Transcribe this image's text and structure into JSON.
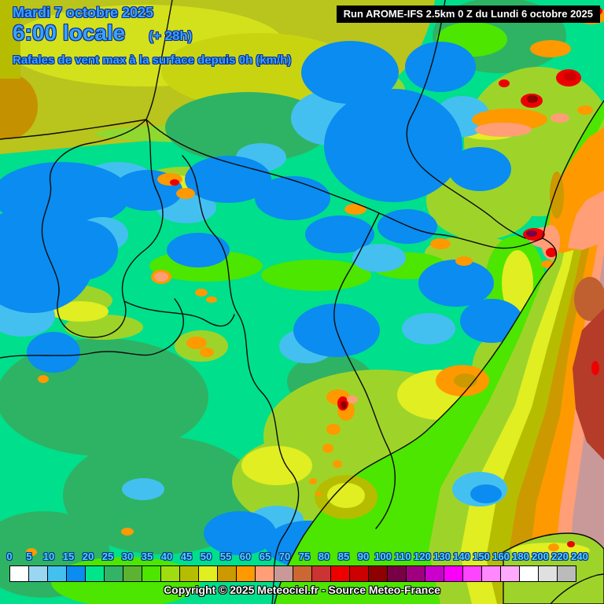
{
  "header": {
    "date": "Mardi 7 octobre 2025",
    "time": "6:00 locale",
    "offset": "(+ 28h)",
    "subtitle": "Rafales de vent max à la surface depuis 0h (km/h)"
  },
  "run_info": {
    "label": "Run AROME-IFS 2.5km 0 Z du Lundi 6 octobre 2025"
  },
  "legend": {
    "unit": "km/h",
    "stops": [
      {
        "value": "0",
        "color": "#ffffff"
      },
      {
        "value": "5",
        "color": "#99d6f2"
      },
      {
        "value": "10",
        "color": "#44c0f0"
      },
      {
        "value": "15",
        "color": "#0a8cf0"
      },
      {
        "value": "20",
        "color": "#00e589"
      },
      {
        "value": "25",
        "color": "#33b366"
      },
      {
        "value": "30",
        "color": "#5cb332"
      },
      {
        "value": "35",
        "color": "#4ce600"
      },
      {
        "value": "40",
        "color": "#9fdd11"
      },
      {
        "value": "45",
        "color": "#b6bd00"
      },
      {
        "value": "50",
        "color": "#e0ee22"
      },
      {
        "value": "55",
        "color": "#cc9900"
      },
      {
        "value": "60",
        "color": "#ff9900"
      },
      {
        "value": "65",
        "color": "#ff9e77"
      },
      {
        "value": "70",
        "color": "#c99999"
      },
      {
        "value": "75",
        "color": "#cc6633"
      },
      {
        "value": "80",
        "color": "#cc3333"
      },
      {
        "value": "85",
        "color": "#ee0000"
      },
      {
        "value": "90",
        "color": "#cc0000"
      },
      {
        "value": "100",
        "color": "#8f0000"
      },
      {
        "value": "110",
        "color": "#7a0045"
      },
      {
        "value": "120",
        "color": "#a00080"
      },
      {
        "value": "130",
        "color": "#cc00cc"
      },
      {
        "value": "140",
        "color": "#fa00fa"
      },
      {
        "value": "150",
        "color": "#ff44ff"
      },
      {
        "value": "160",
        "color": "#ff88ff"
      },
      {
        "value": "180",
        "color": "#ffaaff"
      },
      {
        "value": "200",
        "color": "#ffffff"
      },
      {
        "value": "220",
        "color": "#e0e0e0"
      },
      {
        "value": "240",
        "color": "#bbbbbb"
      }
    ]
  },
  "footer": {
    "copyright": "Copyright © 2025 Meteociel.fr - Source Meteo-France"
  },
  "theme": {
    "header_text": "#3aa2ff",
    "header_outline": "#0a2f8f",
    "legend_text": "#4dd2ff",
    "legend_outline": "#093585",
    "run_bg": "#000000",
    "run_fg": "#ffffff",
    "copyright_fg": "#ffffff",
    "copyright_outline": "#000000"
  }
}
